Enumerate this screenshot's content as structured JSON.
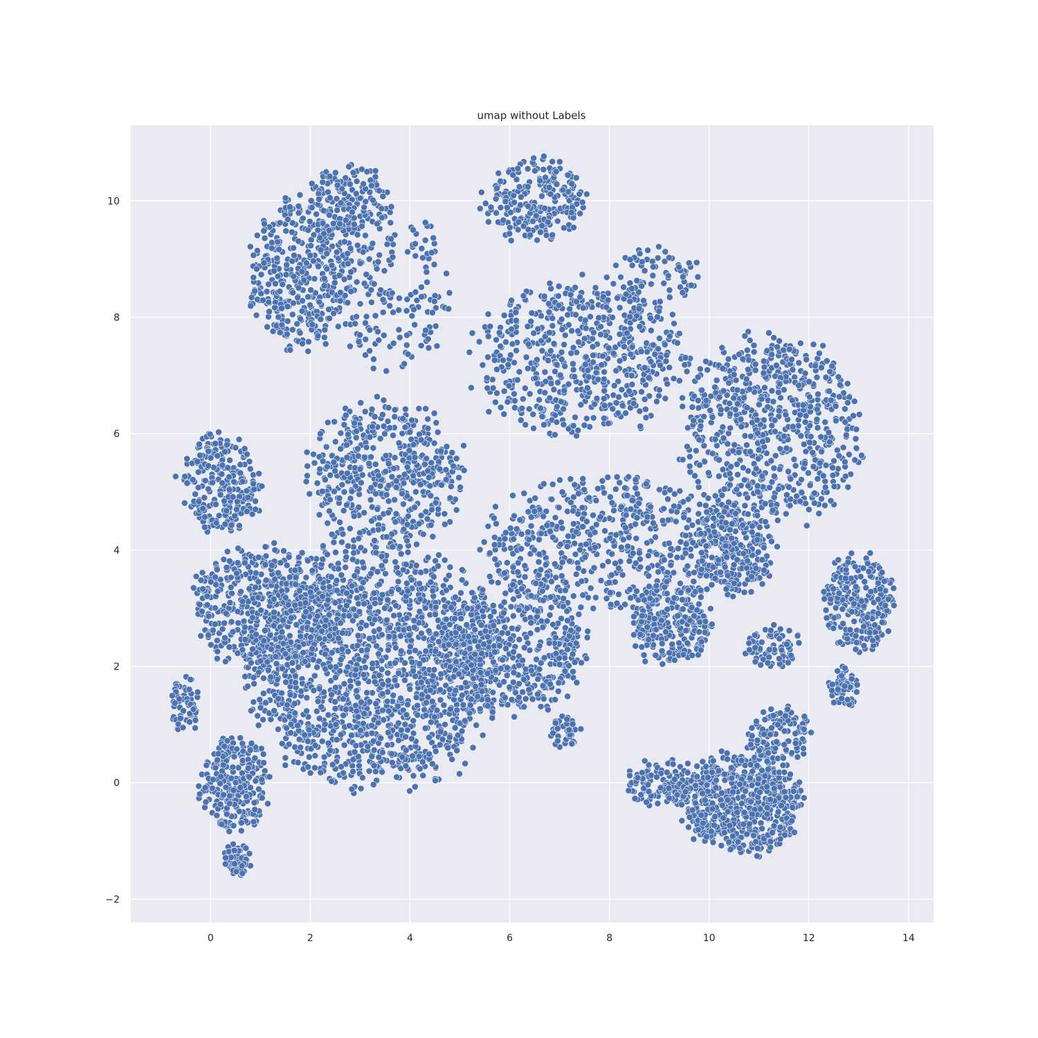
{
  "chart_data": {
    "type": "scatter",
    "title": "umap without Labels",
    "xlabel": "",
    "ylabel": "",
    "xlim": [
      -1.6,
      14.5
    ],
    "ylim": [
      -2.4,
      11.3
    ],
    "xticks": [
      0,
      2,
      4,
      6,
      8,
      10,
      12,
      14
    ],
    "yticks": [
      -2,
      0,
      2,
      4,
      6,
      8,
      10
    ],
    "xtick_labels": [
      "0",
      "2",
      "4",
      "6",
      "8",
      "10",
      "12",
      "14"
    ],
    "ytick_labels": [
      "−2",
      "0",
      "2",
      "4",
      "6",
      "8",
      "10"
    ],
    "grid": true,
    "legend": "none",
    "colors": {
      "background": "#eaeaf2",
      "grid": "#ffffff",
      "marker": "#4c72b0",
      "marker_edge": "#ffffff"
    },
    "point_regions": [
      {
        "x": [
          -0.6,
          1.0
        ],
        "y": [
          4.3,
          6.0
        ],
        "weight": 250
      },
      {
        "x": [
          0.8,
          2.8
        ],
        "y": [
          7.5,
          10.0
        ],
        "weight": 400
      },
      {
        "x": [
          2.0,
          3.5
        ],
        "y": [
          9.5,
          10.6
        ],
        "weight": 150
      },
      {
        "x": [
          2.5,
          4.8
        ],
        "y": [
          7.2,
          9.8
        ],
        "weight": 180
      },
      {
        "x": [
          5.5,
          7.5
        ],
        "y": [
          9.3,
          10.7
        ],
        "weight": 220
      },
      {
        "x": [
          5.3,
          9.5
        ],
        "y": [
          6.0,
          8.6
        ],
        "weight": 600
      },
      {
        "x": [
          8.0,
          9.8
        ],
        "y": [
          8.0,
          9.2
        ],
        "weight": 80
      },
      {
        "x": [
          9.5,
          13.0
        ],
        "y": [
          4.5,
          7.6
        ],
        "weight": 700
      },
      {
        "x": [
          2.0,
          5.0
        ],
        "y": [
          4.0,
          6.5
        ],
        "weight": 500
      },
      {
        "x": [
          5.5,
          10.8
        ],
        "y": [
          3.0,
          5.2
        ],
        "weight": 600
      },
      {
        "x": [
          9.8,
          11.3
        ],
        "y": [
          3.2,
          4.8
        ],
        "weight": 200
      },
      {
        "x": [
          8.5,
          10.0
        ],
        "y": [
          2.0,
          3.5
        ],
        "weight": 250
      },
      {
        "x": [
          10.7,
          11.8
        ],
        "y": [
          2.0,
          2.7
        ],
        "weight": 80
      },
      {
        "x": [
          12.3,
          13.7
        ],
        "y": [
          2.3,
          3.9
        ],
        "weight": 250
      },
      {
        "x": [
          12.4,
          13.0
        ],
        "y": [
          1.3,
          2.0
        ],
        "weight": 60
      },
      {
        "x": [
          -0.4,
          2.5
        ],
        "y": [
          2.0,
          4.0
        ],
        "weight": 500
      },
      {
        "x": [
          0.8,
          5.8
        ],
        "y": [
          0.0,
          4.0
        ],
        "weight": 1600
      },
      {
        "x": [
          4.5,
          7.5
        ],
        "y": [
          1.2,
          3.5
        ],
        "weight": 500
      },
      {
        "x": [
          -0.2,
          1.2
        ],
        "y": [
          -0.8,
          0.8
        ],
        "weight": 250
      },
      {
        "x": [
          0.3,
          0.8
        ],
        "y": [
          -1.6,
          -1.0
        ],
        "weight": 60
      },
      {
        "x": [
          -0.8,
          -0.2
        ],
        "y": [
          0.8,
          1.9
        ],
        "weight": 60
      },
      {
        "x": [
          6.8,
          7.4
        ],
        "y": [
          0.6,
          1.2
        ],
        "weight": 40
      },
      {
        "x": [
          9.5,
          11.8
        ],
        "y": [
          -1.2,
          0.5
        ],
        "weight": 600
      },
      {
        "x": [
          8.3,
          9.8
        ],
        "y": [
          -0.4,
          0.4
        ],
        "weight": 120
      },
      {
        "x": [
          10.8,
          12.0
        ],
        "y": [
          0.3,
          1.3
        ],
        "weight": 120
      }
    ]
  }
}
